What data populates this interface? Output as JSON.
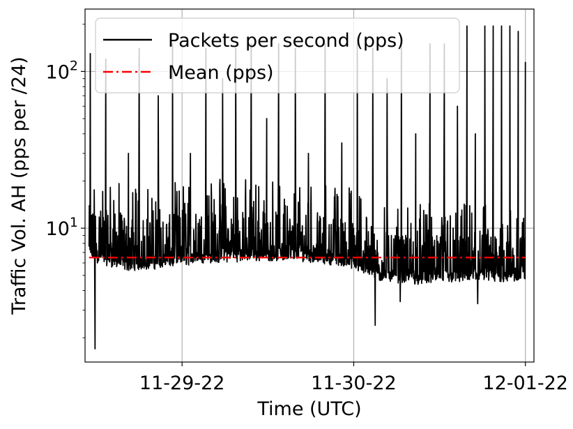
{
  "chart_data": {
    "type": "line",
    "title": "",
    "xlabel": "Time (UTC)",
    "ylabel": "Traffic Vol. AH (pps per /24)",
    "yscale": "log",
    "ylim": [
      1.4,
      250
    ],
    "xlim": [
      "2022-11-28T10:26",
      "2022-12-01T01:12"
    ],
    "x_ticks": [
      {
        "value": "2022-11-29T00:00",
        "label": "11-29-22"
      },
      {
        "value": "2022-11-30T00:00",
        "label": "11-30-22"
      },
      {
        "value": "2022-12-01T00:00",
        "label": "12-01-22"
      }
    ],
    "y_ticks": [
      {
        "value": 10,
        "label_base": "10",
        "label_exp": "1"
      },
      {
        "value": 100,
        "label_base": "10",
        "label_exp": "2"
      }
    ],
    "grid": true,
    "legend_position": "top-left",
    "series": [
      {
        "name": "Packets per second (pps)",
        "color": "#000000",
        "style": "solid",
        "x_range": [
          "2022-11-28T11:00",
          "2022-12-01T00:00"
        ],
        "typical_low": [
          6.5,
          5.6,
          5.8,
          6.2,
          6.4,
          6.5,
          6.4,
          6.0,
          4.8,
          4.6,
          4.7,
          4.7,
          4.8
        ],
        "typical_high": [
          14,
          12,
          12,
          13,
          13,
          13,
          12,
          12,
          9,
          9,
          9,
          9,
          9
        ],
        "spikes": [
          {
            "x": "2022-11-28T11:10",
            "y": 130
          },
          {
            "x": "2022-11-28T13:20",
            "y": 120
          },
          {
            "x": "2022-11-28T16:30",
            "y": 30
          },
          {
            "x": "2022-11-28T18:00",
            "y": 140
          },
          {
            "x": "2022-11-28T20:40",
            "y": 70
          },
          {
            "x": "2022-11-28T22:40",
            "y": 150
          },
          {
            "x": "2022-11-29T01:10",
            "y": 30
          },
          {
            "x": "2022-11-29T03:20",
            "y": 140
          },
          {
            "x": "2022-11-29T05:40",
            "y": 90
          },
          {
            "x": "2022-11-29T07:30",
            "y": 140
          },
          {
            "x": "2022-11-29T09:40",
            "y": 150
          },
          {
            "x": "2022-11-29T11:50",
            "y": 50
          },
          {
            "x": "2022-11-29T13:30",
            "y": 150
          },
          {
            "x": "2022-11-29T15:50",
            "y": 140
          },
          {
            "x": "2022-11-29T17:40",
            "y": 30
          },
          {
            "x": "2022-11-29T20:00",
            "y": 150
          },
          {
            "x": "2022-11-29T22:20",
            "y": 35
          },
          {
            "x": "2022-11-30T00:30",
            "y": 150
          },
          {
            "x": "2022-11-30T02:40",
            "y": 140
          },
          {
            "x": "2022-11-30T04:40",
            "y": 90
          },
          {
            "x": "2022-11-30T06:40",
            "y": 150
          },
          {
            "x": "2022-11-30T08:40",
            "y": 40
          },
          {
            "x": "2022-11-30T10:40",
            "y": 150
          },
          {
            "x": "2022-11-30T12:40",
            "y": 150
          },
          {
            "x": "2022-11-30T14:30",
            "y": 60
          },
          {
            "x": "2022-11-30T15:50",
            "y": 195
          },
          {
            "x": "2022-11-30T17:00",
            "y": 40
          },
          {
            "x": "2022-11-30T18:20",
            "y": 195
          },
          {
            "x": "2022-11-30T19:30",
            "y": 195
          },
          {
            "x": "2022-11-30T20:40",
            "y": 195
          },
          {
            "x": "2022-11-30T21:50",
            "y": 195
          },
          {
            "x": "2022-11-30T23:00",
            "y": 180
          },
          {
            "x": "2022-12-01T00:00",
            "y": 115
          }
        ],
        "dips": [
          {
            "x": "2022-11-28T11:50",
            "y": 1.7
          },
          {
            "x": "2022-11-30T03:00",
            "y": 2.4
          },
          {
            "x": "2022-11-30T06:30",
            "y": 3.4
          },
          {
            "x": "2022-11-30T17:20",
            "y": 3.3
          }
        ]
      },
      {
        "name": "Mean (pps)",
        "color": "#ff0000",
        "style": "dashdot",
        "value": 6.5
      }
    ]
  }
}
